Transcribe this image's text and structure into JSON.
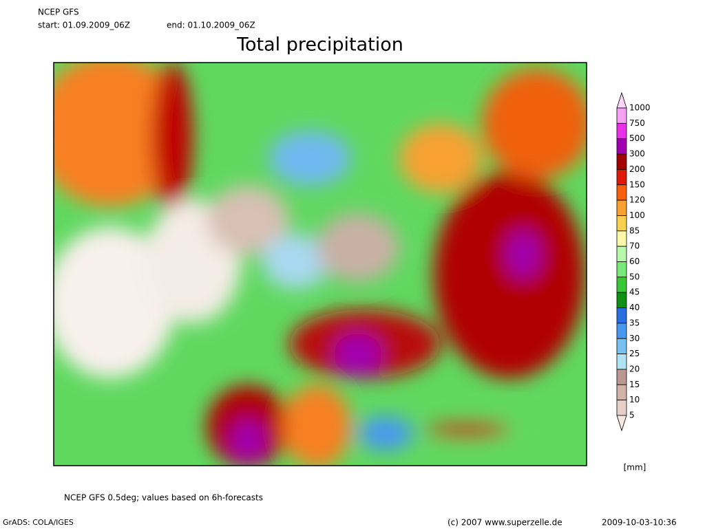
{
  "header": {
    "model": "NCEP GFS",
    "start": "start: 01.09.2009_06Z",
    "end": "end: 01.10.2009_06Z",
    "title": "Total precipitation"
  },
  "colorbar": {
    "unit": "[mm]",
    "labels": [
      1000,
      750,
      500,
      300,
      200,
      150,
      120,
      100,
      85,
      70,
      60,
      50,
      45,
      40,
      35,
      30,
      25,
      20,
      15,
      10,
      5
    ],
    "colors": [
      "#fcd4fc",
      "#f4a0f4",
      "#e830e8",
      "#a000b0",
      "#a00000",
      "#e01808",
      "#f86010",
      "#f8a030",
      "#f8d050",
      "#f8f8a8",
      "#b8f8a8",
      "#78e878",
      "#38c838",
      "#109010",
      "#2870e0",
      "#4898f0",
      "#78c0f0",
      "#b0e4f4",
      "#b89890",
      "#d0b4a8",
      "#e4d0c8",
      "#f4e8e0"
    ]
  },
  "footer": {
    "note": "NCEP GFS 0.5deg; values based on 6h-forecasts",
    "software": "GrADS: COLA/IGES",
    "copyright": "(c) 2007 www.superzelle.de",
    "timestamp": "2009-10-03-10:36"
  }
}
